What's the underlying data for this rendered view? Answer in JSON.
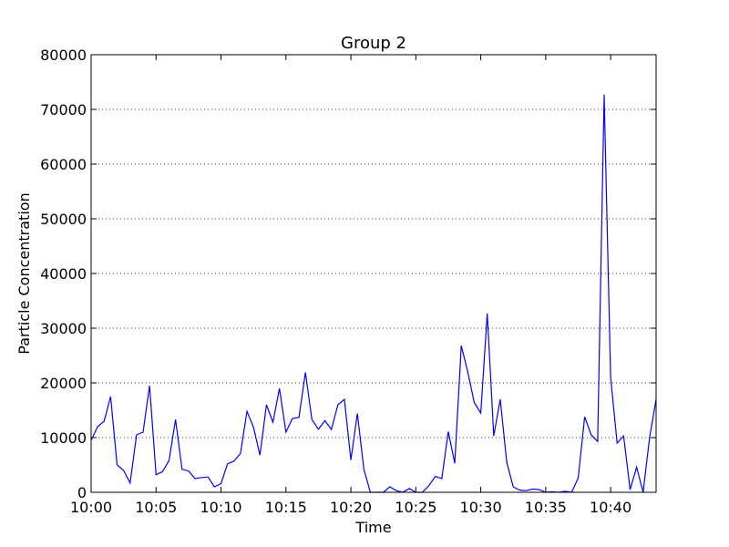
{
  "chart_data": {
    "type": "line",
    "title": "Group 2",
    "xlabel": "Time",
    "ylabel": "Particle Concentration",
    "x_unit": "time (HH:MM)",
    "xlim": [
      "10:00",
      "10:43:30"
    ],
    "ylim": [
      0,
      80000
    ],
    "x_ticks": [
      "10:00",
      "10:05",
      "10:10",
      "10:15",
      "10:20",
      "10:25",
      "10:30",
      "10:35",
      "10:40"
    ],
    "y_ticks": [
      "0",
      "10000",
      "20000",
      "30000",
      "40000",
      "50000",
      "60000",
      "70000",
      "80000"
    ],
    "grid": "horizontal dotted",
    "series": [
      {
        "color": "#0000ff",
        "x": [
          "10:00:00",
          "10:00:30",
          "10:01:00",
          "10:01:30",
          "10:02:00",
          "10:02:30",
          "10:03:00",
          "10:03:30",
          "10:04:00",
          "10:04:30",
          "10:05:00",
          "10:05:30",
          "10:06:00",
          "10:06:30",
          "10:07:00",
          "10:07:30",
          "10:08:00",
          "10:08:30",
          "10:09:00",
          "10:09:30",
          "10:10:00",
          "10:10:30",
          "10:11:00",
          "10:11:30",
          "10:12:00",
          "10:12:30",
          "10:13:00",
          "10:13:30",
          "10:14:00",
          "10:14:30",
          "10:15:00",
          "10:15:30",
          "10:16:00",
          "10:16:30",
          "10:17:00",
          "10:17:30",
          "10:18:00",
          "10:18:30",
          "10:19:00",
          "10:19:30",
          "10:20:00",
          "10:20:30",
          "10:21:00",
          "10:21:30",
          "10:22:00",
          "10:22:30",
          "10:23:00",
          "10:23:30",
          "10:24:00",
          "10:24:30",
          "10:25:00",
          "10:25:30",
          "10:26:00",
          "10:26:30",
          "10:27:00",
          "10:27:30",
          "10:28:00",
          "10:28:30",
          "10:29:00",
          "10:29:30",
          "10:30:00",
          "10:30:30",
          "10:31:00",
          "10:31:30",
          "10:32:00",
          "10:32:30",
          "10:33:00",
          "10:33:30",
          "10:34:00",
          "10:34:30",
          "10:35:00",
          "10:35:30",
          "10:36:00",
          "10:36:30",
          "10:37:00",
          "10:37:30",
          "10:38:00",
          "10:38:30",
          "10:39:00",
          "10:39:30",
          "10:40:00",
          "10:40:30",
          "10:41:00",
          "10:41:30",
          "10:42:00",
          "10:42:30",
          "10:43:00",
          "10:43:30"
        ],
        "values": [
          9500,
          12000,
          13000,
          17500,
          5000,
          4000,
          1700,
          10500,
          11000,
          19500,
          3200,
          3800,
          5800,
          13300,
          4200,
          3900,
          2500,
          2700,
          2800,
          1000,
          1600,
          5200,
          5700,
          7100,
          14800,
          11900,
          6800,
          16000,
          12800,
          19000,
          11000,
          13500,
          13700,
          21900,
          13300,
          11500,
          13100,
          11500,
          16000,
          17000,
          5900,
          14400,
          4200,
          0,
          0,
          0,
          1000,
          300,
          0,
          700,
          0,
          0,
          1200,
          2900,
          2500,
          11100,
          5300,
          26800,
          22000,
          16400,
          14500,
          32700,
          10300,
          17000,
          5500,
          1000,
          400,
          300,
          600,
          500,
          0,
          100,
          0,
          200,
          0,
          2600,
          13800,
          10500,
          9300,
          72700,
          21000,
          9000,
          10300,
          500,
          4600,
          0,
          10000,
          17000
        ]
      }
    ]
  }
}
